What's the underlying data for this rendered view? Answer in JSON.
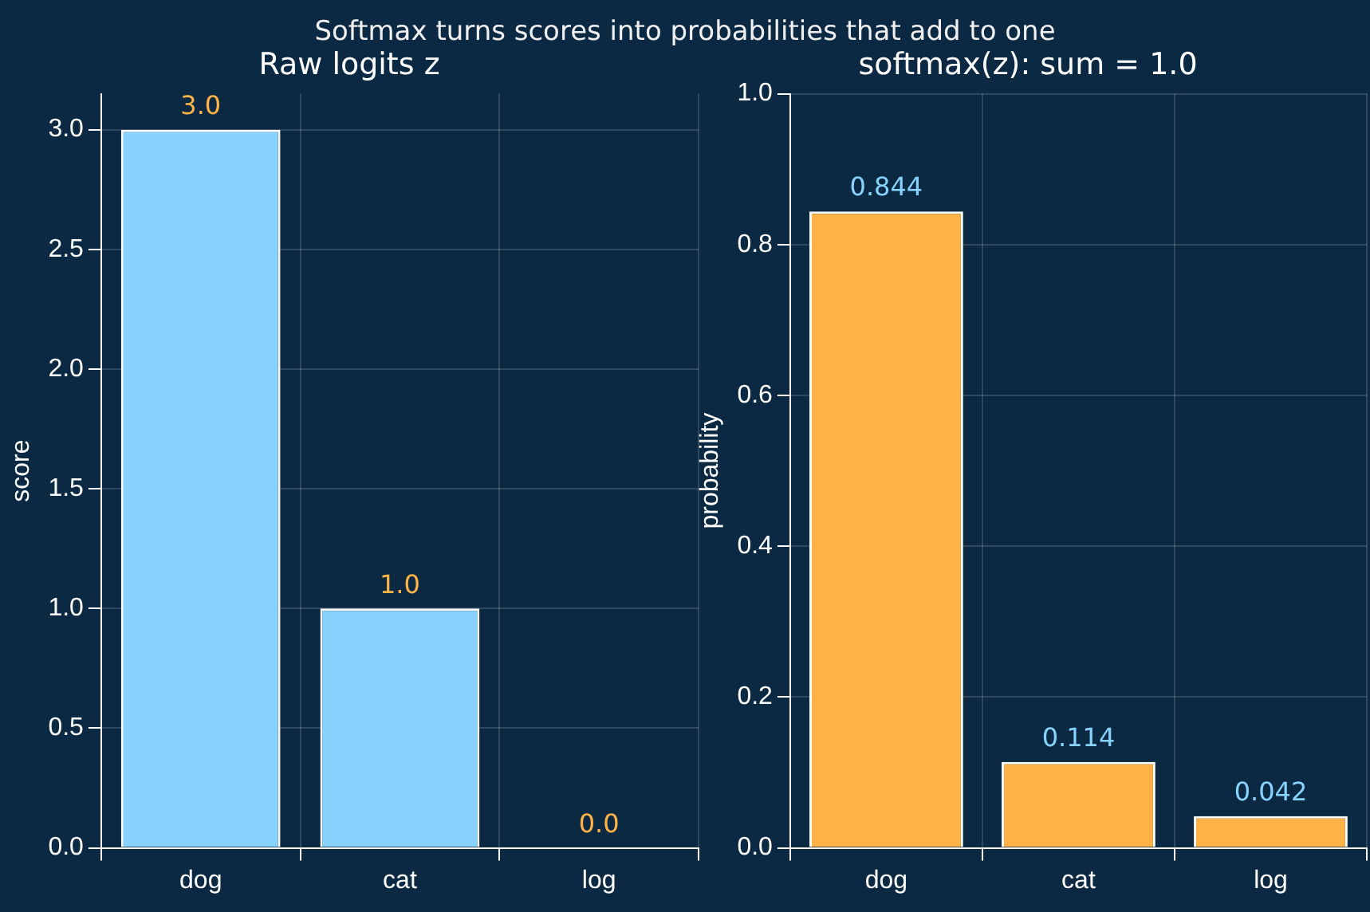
{
  "chart_data": [
    {
      "type": "bar",
      "title": "Raw logits z",
      "annotations": [
        "Softmax turns scores into probabilities that add to one"
      ],
      "ylabel": "score",
      "categories": [
        "dog",
        "cat",
        "log"
      ],
      "values": [
        3.0,
        1.0,
        0.0
      ],
      "color": "#87d3fd",
      "value_labels": [
        "3.0",
        "1.0",
        "0.0"
      ],
      "ylim": [
        0,
        3.15
      ],
      "yticks": [
        {
          "value": 0,
          "label": "0.0"
        },
        {
          "value": 0.5,
          "label": "0.5"
        },
        {
          "value": 1,
          "label": "1.0"
        },
        {
          "value": 1.5,
          "label": "1.5"
        },
        {
          "value": 2,
          "label": "2.0"
        },
        {
          "value": 2.5,
          "label": "2.5"
        },
        {
          "value": 3,
          "label": "3.0"
        }
      ],
      "grid": true
    },
    {
      "type": "bar",
      "title": "softmax(z): sum = 1.0",
      "ylabel": "probability",
      "categories": [
        "dog",
        "cat",
        "log"
      ],
      "values": [
        0.844,
        0.114,
        0.042
      ],
      "color": "#ffb347",
      "value_labels": [
        "0.844",
        "0.114",
        "0.042"
      ],
      "ylim": [
        0,
        1
      ],
      "yticks": [
        {
          "value": 0,
          "label": "0.0"
        },
        {
          "value": 0.2,
          "label": "0.2"
        },
        {
          "value": 0.4,
          "label": "0.4"
        },
        {
          "value": 0.6,
          "label": "0.6"
        },
        {
          "value": 0.8,
          "label": "0.8"
        },
        {
          "value": 1,
          "label": "1.0"
        }
      ],
      "grid": true
    }
  ]
}
